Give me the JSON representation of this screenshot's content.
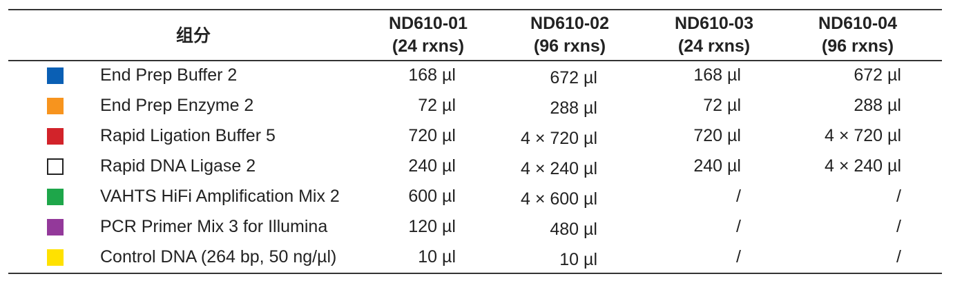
{
  "header": {
    "component": "组分",
    "columns": [
      {
        "code": "ND610-01",
        "rxns": "(24 rxns)"
      },
      {
        "code": "ND610-02",
        "rxns": "(96 rxns)"
      },
      {
        "code": "ND610-03",
        "rxns": "(24 rxns)"
      },
      {
        "code": "ND610-04",
        "rxns": "(96 rxns)"
      }
    ]
  },
  "rows": [
    {
      "name": "End Prep Buffer 2",
      "color": "#0a5fb4",
      "values": [
        "168 µl",
        "672 µl",
        "168 µl",
        "672 µl"
      ]
    },
    {
      "name": "End Prep Enzyme 2",
      "color": "#f7941e",
      "values": [
        "72 µl",
        "288 µl",
        "72 µl",
        "288 µl"
      ]
    },
    {
      "name": "Rapid Ligation Buffer 5",
      "color": "#d2232a",
      "values": [
        "720 µl",
        "4 × 720 µl",
        "720 µl",
        "4 × 720 µl"
      ]
    },
    {
      "name": "Rapid DNA Ligase 2",
      "color": "#ffffff",
      "values": [
        "240 µl",
        "4 × 240 µl",
        "240 µl",
        "4 × 240 µl"
      ]
    },
    {
      "name": "VAHTS HiFi Amplification Mix 2",
      "color": "#1ea64a",
      "values": [
        "600 µl",
        "4 × 600 µl",
        "/",
        "/"
      ]
    },
    {
      "name": "PCR Primer Mix 3 for Illumina",
      "color": "#93399a",
      "values": [
        "120 µl",
        "480 µl",
        "/",
        "/"
      ]
    },
    {
      "name": "Control DNA (264 bp, 50 ng/µl)",
      "color": "#ffe100",
      "values": [
        "10 µl",
        "10 µl",
        "/",
        "/"
      ]
    }
  ]
}
